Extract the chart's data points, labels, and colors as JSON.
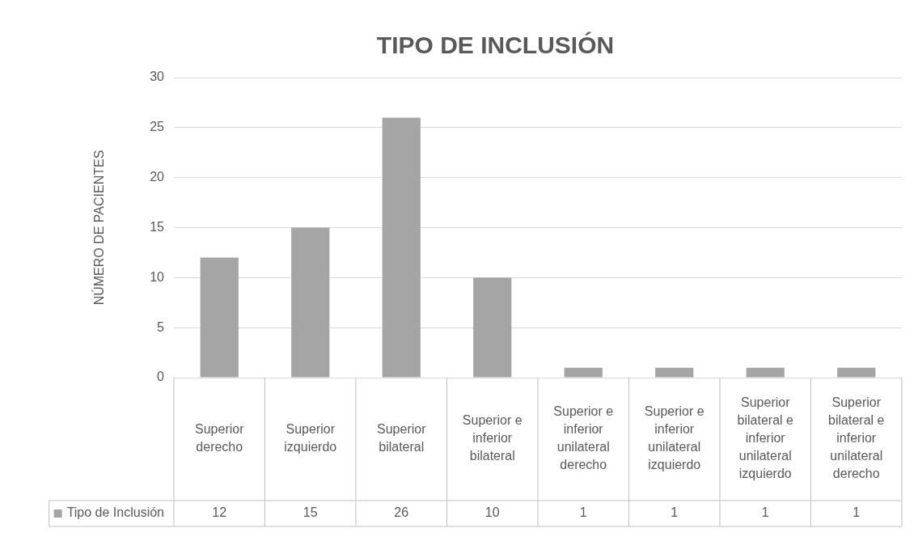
{
  "chart_data": {
    "type": "bar",
    "title": "TIPO DE INCLUSIÓN",
    "ylabel": "NÚMERO DE PACIENTES",
    "categories": [
      "Superior derecho",
      "Superior izquierdo",
      "Superior bilateral",
      "Superior e inferior bilateral",
      "Superior e inferior unilateral derecho",
      "Superior e inferior unilateral izquierdo",
      "Superior bilateral e inferior unilateral izquierdo",
      "Superior bilateral e inferior unilateral derecho"
    ],
    "series": [
      {
        "name": "Tipo de Inclusión",
        "color": "#a5a5a5",
        "values": [
          12,
          15,
          26,
          10,
          1,
          1,
          1,
          1
        ]
      }
    ],
    "ylim": [
      0,
      30
    ],
    "yticks": [
      0,
      5,
      10,
      15,
      20,
      25,
      30
    ],
    "grid": "y",
    "legend": "bottom",
    "data_labels": true
  }
}
